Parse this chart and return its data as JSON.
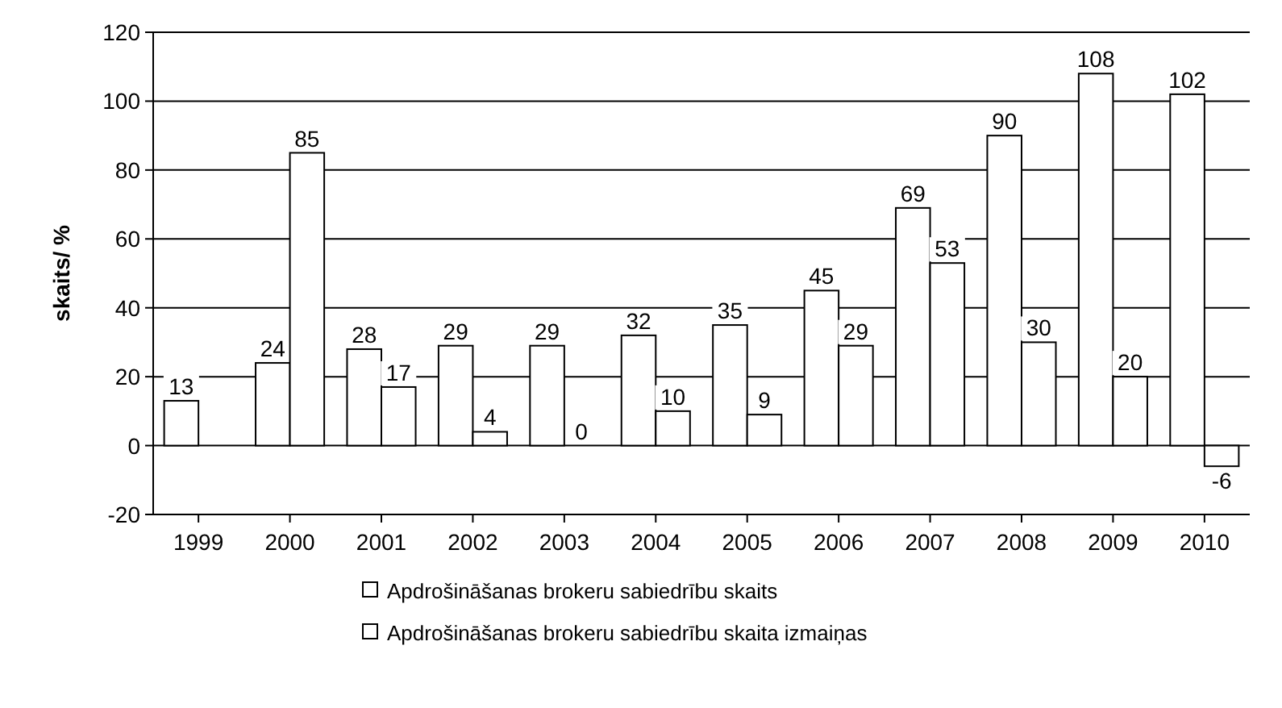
{
  "chart_data": {
    "type": "bar",
    "ylabel": "skaits/ %",
    "categories": [
      "1999",
      "2000",
      "2001",
      "2002",
      "2003",
      "2004",
      "2005",
      "2006",
      "2007",
      "2008",
      "2009",
      "2010"
    ],
    "series": [
      {
        "name": "Apdrošināšanas brokeru sabiedrību skaits",
        "color": "#ffffff",
        "values": [
          13,
          24,
          28,
          29,
          29,
          32,
          35,
          45,
          69,
          90,
          108,
          102
        ]
      },
      {
        "name": "Apdrošināšanas brokeru sabiedrību skaita izmaiņas",
        "color": "#ffffff",
        "values": [
          null,
          85,
          17,
          4,
          0,
          10,
          9,
          29,
          53,
          30,
          20,
          -6
        ]
      }
    ],
    "ylim": [
      -20,
      120
    ],
    "yticks": [
      -20,
      0,
      20,
      40,
      60,
      80,
      100,
      120
    ],
    "grid": "y",
    "legend": "bottom",
    "data_labels": true
  }
}
